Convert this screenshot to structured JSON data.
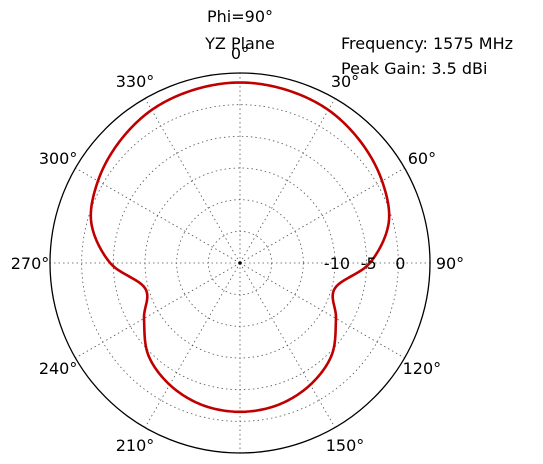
{
  "chart_data": {
    "type": "polar-line",
    "title_lines": [
      "Phi=90°",
      "YZ Plane"
    ],
    "annotation_lines": [
      "Frequency: 1575 MHz",
      "Peak Gain: 3.5 dBi"
    ],
    "angle_ticks": [
      "0°",
      "30°",
      "60°",
      "90°",
      "120°",
      "150°",
      "180°",
      "210°",
      "240°",
      "270°",
      "300°",
      "330°"
    ],
    "radial_ticks": [
      "-10",
      "-5",
      "0"
    ],
    "radial_range_db": [
      -25,
      5
    ],
    "radial_tick_values_db": [
      -20,
      -15,
      -10,
      -5,
      0
    ],
    "grid": true,
    "series": [
      {
        "color": "#c00000",
        "theta_deg": [
          0,
          15,
          30,
          45,
          60,
          75,
          90,
          105,
          120,
          135,
          150,
          165,
          180,
          195,
          210,
          225,
          240,
          255,
          270,
          285,
          300,
          315,
          330,
          345
        ],
        "gain_db": [
          3.5,
          3.3,
          2.9,
          2.0,
          0.9,
          -0.7,
          -4.5,
          -9.5,
          -7.5,
          -4.5,
          -2.8,
          -1.8,
          -1.5,
          -1.8,
          -2.8,
          -4.5,
          -7.5,
          -9.5,
          -4.5,
          -0.7,
          0.9,
          2.0,
          2.9,
          3.3
        ]
      }
    ]
  }
}
